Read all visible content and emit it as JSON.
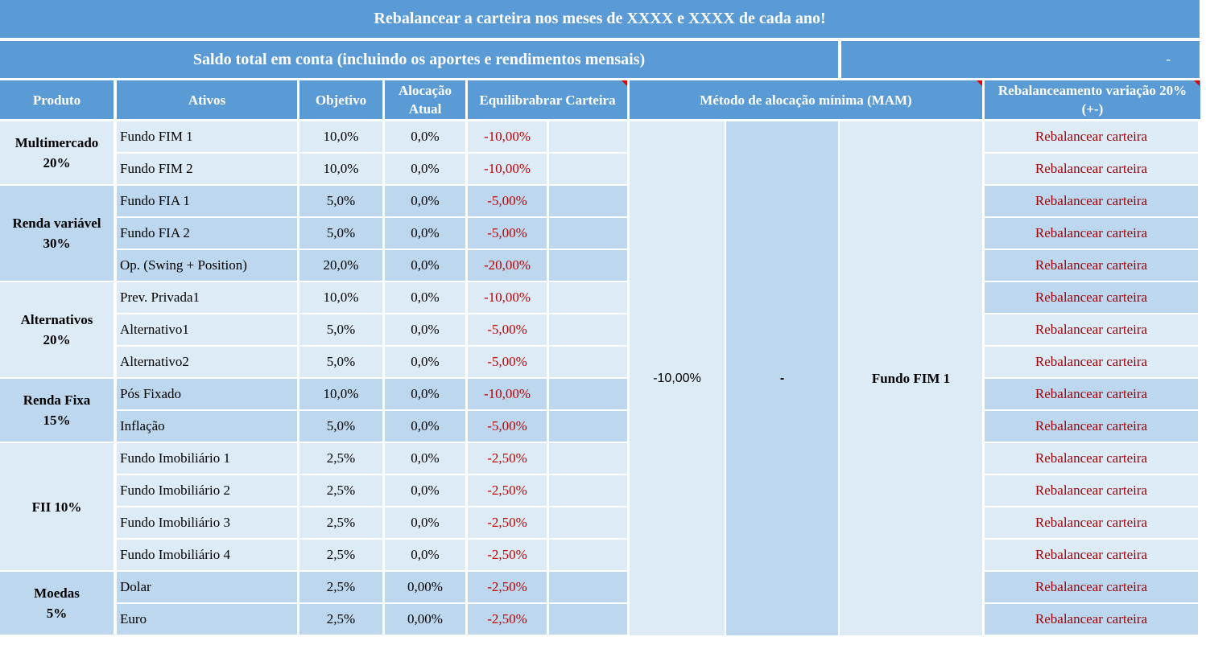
{
  "title": "Rebalancear a carteira nos meses de XXXX e XXXX de cada ano!",
  "saldo": {
    "label": "Saldo total em conta (incluindo os aportes e rendimentos mensais)",
    "value": "-"
  },
  "headers": {
    "produto": "Produto",
    "ativos": "Ativos",
    "objetivo": "Objetivo",
    "alocacao": "Alocação Atual",
    "equilibrar": "Equilibrabrar Carteira",
    "mam": "Método de alocação mínima (MAM)",
    "rebal": "Rebalanceamento variação 20% (+-)"
  },
  "groups": [
    {
      "name": "Multimercado",
      "pct": "20%"
    },
    {
      "name": "Renda variável",
      "pct": "30%"
    },
    {
      "name": "Alternativos",
      "pct": "20%"
    },
    {
      "name": "Renda Fixa",
      "pct": "15%"
    },
    {
      "name": "FII 10%",
      "pct": ""
    },
    {
      "name": "Moedas",
      "pct": "5%"
    }
  ],
  "rows": [
    {
      "ativo": "Fundo FIM 1",
      "objetivo": "10,0%",
      "alocacao": "0,0%",
      "equilibrar": "-10,00%",
      "rebal": "Rebalancear carteira"
    },
    {
      "ativo": "Fundo FIM 2",
      "objetivo": "10,0%",
      "alocacao": "0,0%",
      "equilibrar": "-10,00%",
      "rebal": "Rebalancear carteira"
    },
    {
      "ativo": "Fundo FIA 1",
      "objetivo": "5,0%",
      "alocacao": "0,0%",
      "equilibrar": "-5,00%",
      "rebal": "Rebalancear carteira"
    },
    {
      "ativo": "Fundo FIA 2",
      "objetivo": "5,0%",
      "alocacao": "0,0%",
      "equilibrar": "-5,00%",
      "rebal": "Rebalancear carteira"
    },
    {
      "ativo": "Op. (Swing + Position)",
      "objetivo": "20,0%",
      "alocacao": "0,0%",
      "equilibrar": "-20,00%",
      "rebal": "Rebalancear carteira"
    },
    {
      "ativo": "Prev. Privada1",
      "objetivo": "10,0%",
      "alocacao": "0,0%",
      "equilibrar": "-10,00%",
      "rebal": "Rebalancear carteira"
    },
    {
      "ativo": "Alternativo1",
      "objetivo": "5,0%",
      "alocacao": "0,0%",
      "equilibrar": "-5,00%",
      "rebal": "Rebalancear carteira"
    },
    {
      "ativo": "Alternativo2",
      "objetivo": "5,0%",
      "alocacao": "0,0%",
      "equilibrar": "-5,00%",
      "rebal": "Rebalancear carteira"
    },
    {
      "ativo": "Pós Fixado",
      "objetivo": "10,0%",
      "alocacao": "0,0%",
      "equilibrar": "-10,00%",
      "rebal": "Rebalancear carteira"
    },
    {
      "ativo": "Inflação",
      "objetivo": "5,0%",
      "alocacao": "0,0%",
      "equilibrar": "-5,00%",
      "rebal": "Rebalancear carteira"
    },
    {
      "ativo": "Fundo Imobiliário 1",
      "objetivo": "2,5%",
      "alocacao": "0,0%",
      "equilibrar": "-2,50%",
      "rebal": "Rebalancear carteira"
    },
    {
      "ativo": "Fundo Imobiliário 2",
      "objetivo": "2,5%",
      "alocacao": "0,0%",
      "equilibrar": "-2,50%",
      "rebal": "Rebalancear carteira"
    },
    {
      "ativo": "Fundo Imobiliário 3",
      "objetivo": "2,5%",
      "alocacao": "0,0%",
      "equilibrar": "-2,50%",
      "rebal": "Rebalancear carteira"
    },
    {
      "ativo": "Fundo Imobiliário 4",
      "objetivo": "2,5%",
      "alocacao": "0,0%",
      "equilibrar": "-2,50%",
      "rebal": "Rebalancear carteira"
    },
    {
      "ativo": "Dolar",
      "objetivo": "2,5%",
      "alocacao": "0,00%",
      "equilibrar": "-2,50%",
      "rebal": "Rebalancear carteira"
    },
    {
      "ativo": "Euro",
      "objetivo": "2,5%",
      "alocacao": "0,00%",
      "equilibrar": "-2,50%",
      "rebal": "Rebalancear carteira"
    }
  ],
  "mam": {
    "value": "-10,00%",
    "amount": "-",
    "fund": "Fundo FIM 1"
  },
  "colors": {
    "header": "#5b9bd5",
    "light": "#ddebf7",
    "mid": "#bdd7ee",
    "negative": "#c00000",
    "comment_flag": "#e00000"
  }
}
